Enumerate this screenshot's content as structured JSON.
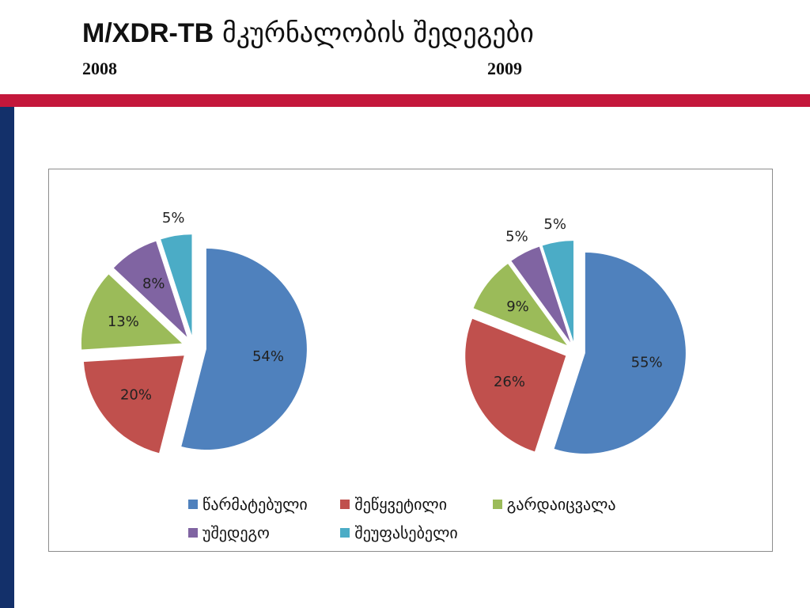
{
  "title": {
    "latin": "M/XDR-TB",
    "georgian": "მკურნალობის შედეგები"
  },
  "years": [
    "2008",
    "2009"
  ],
  "colors": {
    "success": "#4f81bd",
    "interrupted": "#c0504d",
    "died": "#9bbb59",
    "failure": "#8064a2",
    "not_evaluated": "#4bacc6"
  },
  "chart_data": [
    {
      "type": "pie",
      "categories": [
        "წარმატებული",
        "შეწყვეტილი",
        "გარდაიცვალა",
        "უშედეგო",
        "შეუფასებელი"
      ],
      "values": [
        54,
        20,
        13,
        8,
        5
      ],
      "labels": [
        "54%",
        "20%",
        "13%",
        "8%",
        "5%"
      ]
    },
    {
      "type": "pie",
      "categories": [
        "წარმატებული",
        "შეწყვეტილი",
        "გარდაიცვალა",
        "უშედეგო",
        "შეუფასებელი"
      ],
      "values": [
        55,
        26,
        9,
        5,
        5
      ],
      "labels": [
        "55%",
        "26%",
        "9%",
        "5%",
        "5%"
      ]
    }
  ],
  "legend": [
    {
      "label": "წარმატებული",
      "color": "#4f81bd"
    },
    {
      "label": "შეწყვეტილი",
      "color": "#c0504d"
    },
    {
      "label": "გარდაიცვალა",
      "color": "#9bbb59"
    },
    {
      "label": "უშედეგო",
      "color": "#8064a2"
    },
    {
      "label": "შეუფასებელი",
      "color": "#4bacc6"
    }
  ]
}
